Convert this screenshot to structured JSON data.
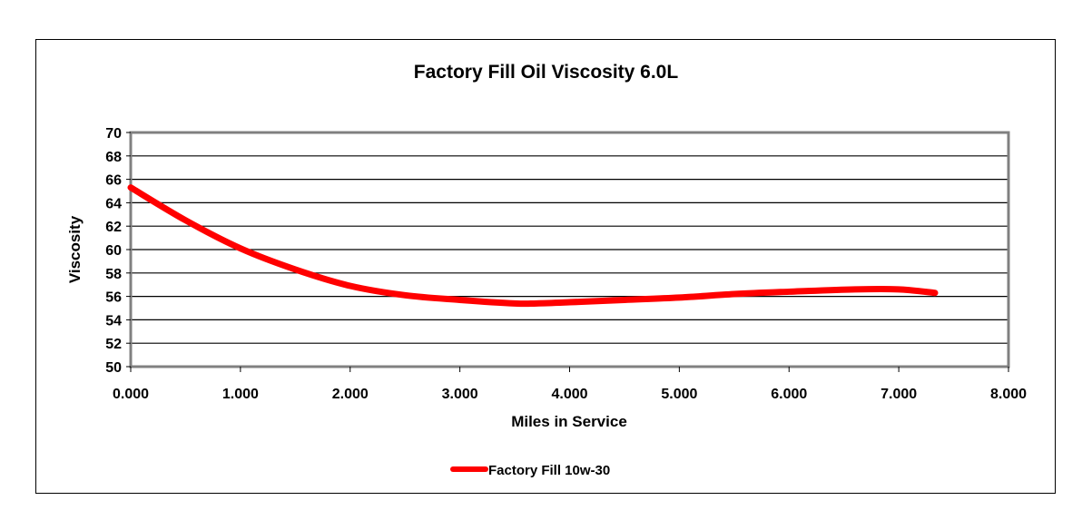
{
  "chart_data": {
    "type": "line",
    "title": "Factory Fill Oil Viscosity 6.0L",
    "xlabel": "Miles in Service",
    "ylabel": "Viscosity",
    "xlim": [
      0,
      8000
    ],
    "ylim": [
      50,
      70
    ],
    "x_ticks": [
      "0.000",
      "1.000",
      "2.000",
      "3.000",
      "4.000",
      "5.000",
      "6.000",
      "7.000",
      "8.000"
    ],
    "y_ticks": [
      "50",
      "52",
      "54",
      "56",
      "58",
      "60",
      "62",
      "64",
      "66",
      "68",
      "70"
    ],
    "grid": {
      "horizontal": true,
      "vertical": false
    },
    "legend_position": "bottom",
    "series": [
      {
        "name": "Factory Fill 10w-30",
        "color": "#ff0000",
        "x": [
          0,
          500,
          1000,
          1500,
          2000,
          2500,
          3000,
          3500,
          3700,
          4000,
          4500,
          5000,
          5500,
          6000,
          6600,
          7000,
          7330
        ],
        "values": [
          65.3,
          62.5,
          60.1,
          58.3,
          56.9,
          56.1,
          55.7,
          55.4,
          55.4,
          55.5,
          55.7,
          55.9,
          56.2,
          56.4,
          56.6,
          56.6,
          56.3
        ]
      }
    ]
  },
  "legend": {
    "label": "Factory Fill 10w-30"
  }
}
